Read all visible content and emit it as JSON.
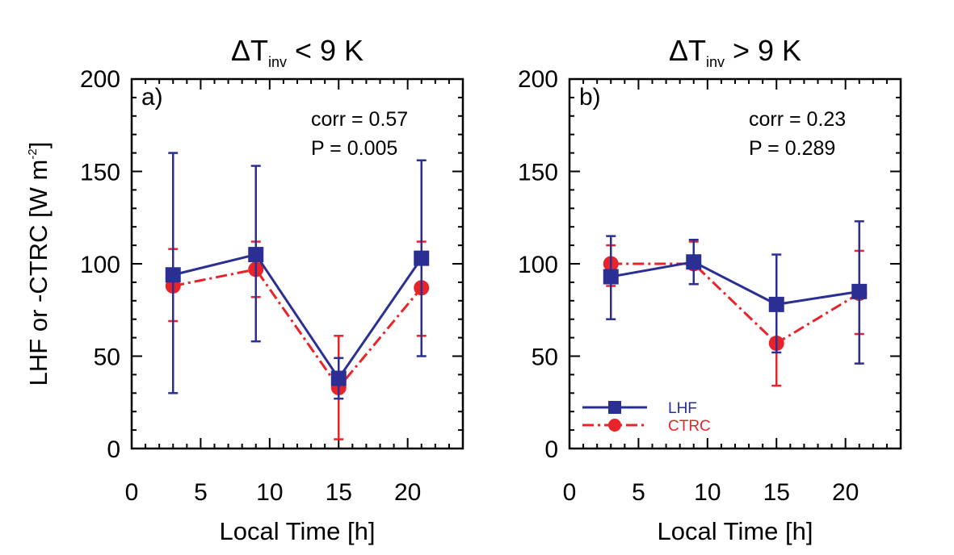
{
  "colors": {
    "lhf": "#2b2f93",
    "ctrc": "#e8232a",
    "axis": "#000000"
  },
  "ylabel": {
    "prefix": "LHF or -CTRC [W m",
    "sup": "-2",
    "suffix": "]"
  },
  "legend": {
    "lhf": "LHF",
    "ctrc": "CTRC",
    "placement": "lower-left (panel b)"
  },
  "chart_data": [
    {
      "type": "line",
      "panel_label": "a)",
      "title": {
        "prefix": "ΔT",
        "sub": "inv",
        "suffix": " < 9 K"
      },
      "xlabel": "Local Time [h]",
      "xlim": [
        0,
        24
      ],
      "ylim": [
        0,
        200
      ],
      "xticks": [
        0,
        5,
        10,
        15,
        20
      ],
      "yticks": [
        0,
        50,
        100,
        150,
        200
      ],
      "stats": [
        "corr = 0.57",
        "P = 0.005"
      ],
      "series": [
        {
          "name": "LHF",
          "x": [
            3,
            9,
            15,
            21
          ],
          "y": [
            94,
            105,
            38,
            103
          ],
          "err_lo": [
            30,
            58,
            27,
            50
          ],
          "err_hi": [
            160,
            153,
            49,
            156
          ]
        },
        {
          "name": "CTRC",
          "x": [
            3,
            9,
            15,
            21
          ],
          "y": [
            88,
            97,
            33,
            87
          ],
          "err_lo": [
            69,
            82,
            5,
            61
          ],
          "err_hi": [
            108,
            112,
            61,
            112
          ]
        }
      ]
    },
    {
      "type": "line",
      "panel_label": "b)",
      "title": {
        "prefix": "ΔT",
        "sub": "inv",
        "suffix": " > 9 K"
      },
      "xlabel": "Local Time [h]",
      "xlim": [
        0,
        24
      ],
      "ylim": [
        0,
        200
      ],
      "xticks": [
        0,
        5,
        10,
        15,
        20
      ],
      "yticks": [
        0,
        50,
        100,
        150,
        200
      ],
      "stats": [
        "corr = 0.23",
        "P = 0.289"
      ],
      "series": [
        {
          "name": "LHF",
          "x": [
            3,
            9,
            15,
            21
          ],
          "y": [
            93,
            101,
            78,
            85
          ],
          "err_lo": [
            70,
            89,
            52,
            46
          ],
          "err_hi": [
            115,
            113,
            105,
            123
          ]
        },
        {
          "name": "CTRC",
          "x": [
            3,
            9,
            15,
            21
          ],
          "y": [
            100,
            100,
            57,
            84
          ],
          "err_lo": [
            88,
            89,
            34,
            62
          ],
          "err_hi": [
            110,
            112,
            78,
            107
          ]
        }
      ]
    }
  ]
}
